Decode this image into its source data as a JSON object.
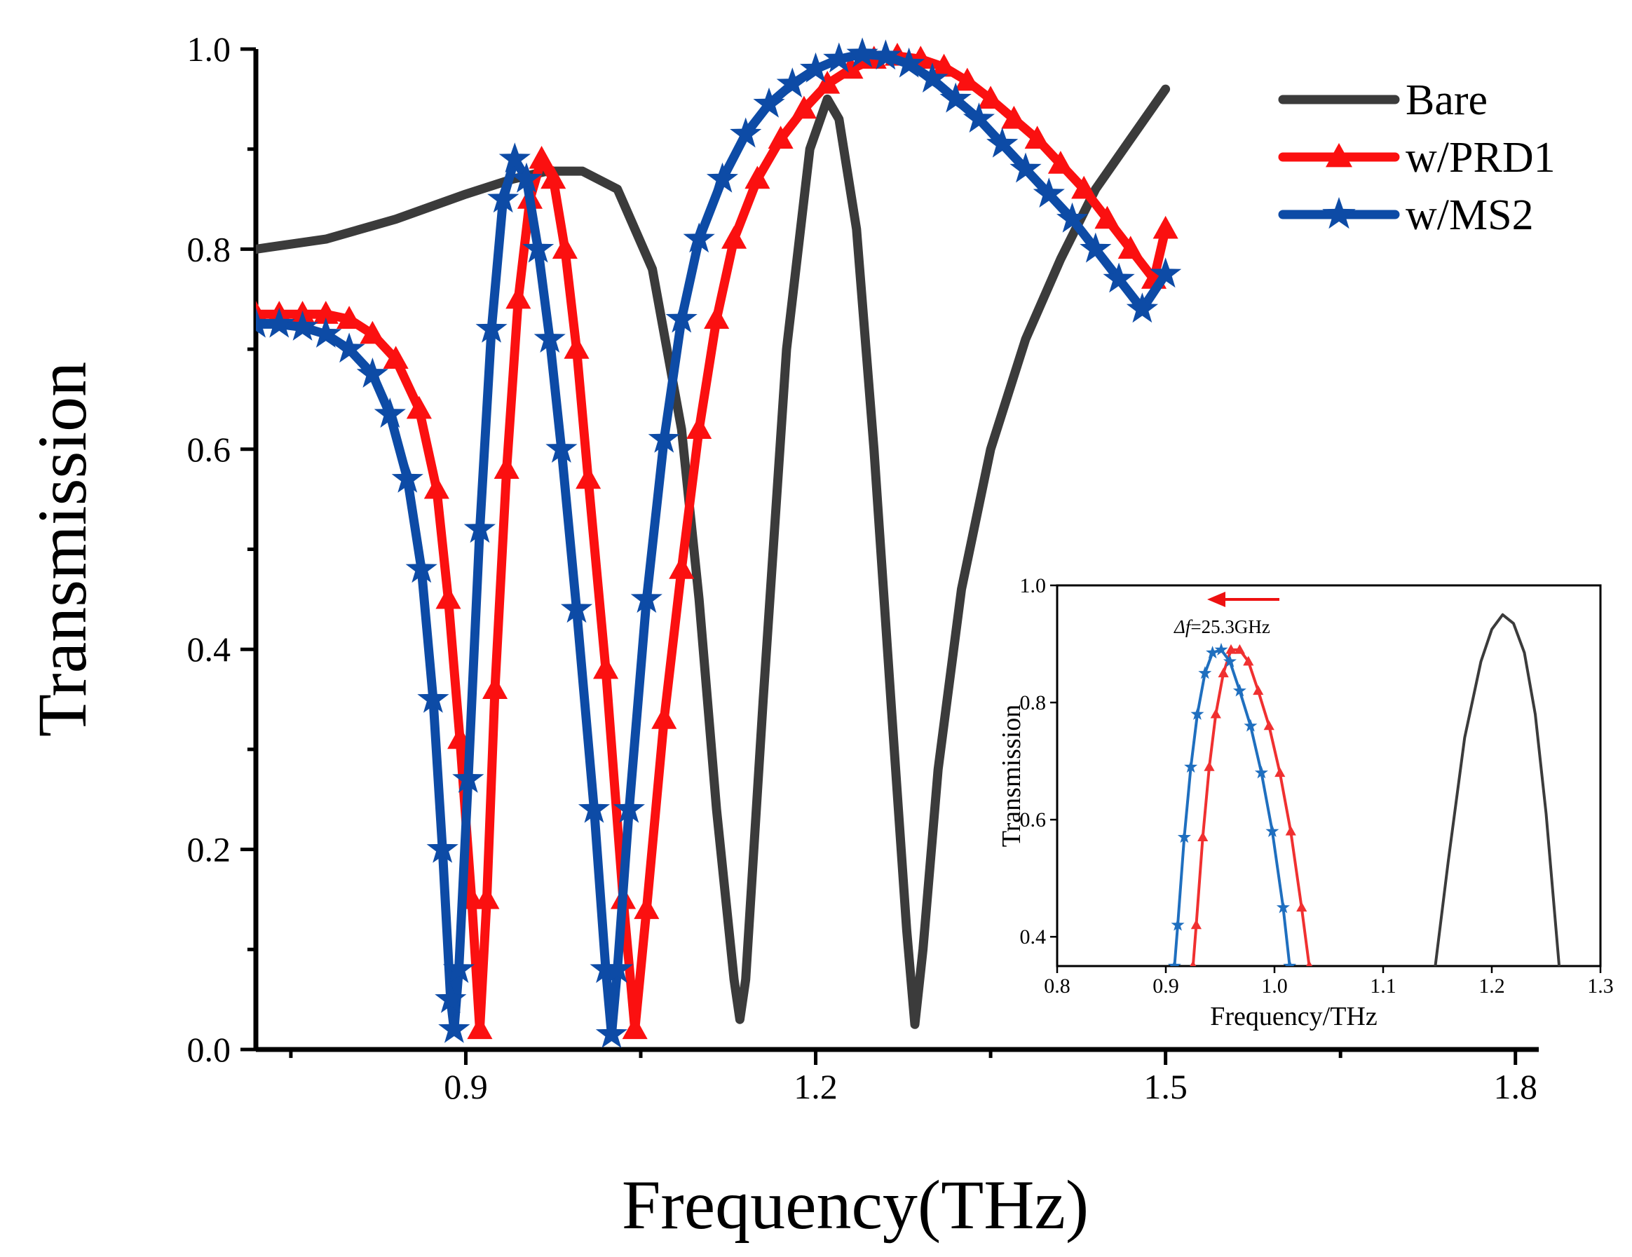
{
  "chart_data": [
    {
      "type": "line",
      "role": "main",
      "title": "",
      "xlabel": "Frequency(THz)",
      "ylabel": "Transmission",
      "xlim": [
        0.72,
        1.82
      ],
      "ylim": [
        0.0,
        1.0
      ],
      "xticks": [
        0.9,
        1.2,
        1.5,
        1.8
      ],
      "xtick_labels": [
        "0.9",
        "1.2",
        "1.5",
        "1.8"
      ],
      "yticks": [
        0.0,
        0.2,
        0.4,
        0.6,
        0.8,
        1.0
      ],
      "ytick_labels": [
        "0.0",
        "0.2",
        "0.4",
        "0.6",
        "0.8",
        "1.0"
      ],
      "legend_position": "top-right",
      "series": [
        {
          "name": "Bare",
          "color": "#3b3b3b",
          "marker": "none",
          "points": [
            [
              0.72,
              0.8
            ],
            [
              0.78,
              0.81
            ],
            [
              0.84,
              0.83
            ],
            [
              0.9,
              0.855
            ],
            [
              0.94,
              0.87
            ],
            [
              0.97,
              0.878
            ],
            [
              1.0,
              0.878
            ],
            [
              1.03,
              0.86
            ],
            [
              1.06,
              0.78
            ],
            [
              1.085,
              0.62
            ],
            [
              1.1,
              0.45
            ],
            [
              1.115,
              0.24
            ],
            [
              1.13,
              0.07
            ],
            [
              1.135,
              0.03
            ],
            [
              1.14,
              0.07
            ],
            [
              1.155,
              0.35
            ],
            [
              1.175,
              0.7
            ],
            [
              1.195,
              0.9
            ],
            [
              1.21,
              0.95
            ],
            [
              1.22,
              0.93
            ],
            [
              1.235,
              0.82
            ],
            [
              1.25,
              0.6
            ],
            [
              1.265,
              0.34
            ],
            [
              1.278,
              0.12
            ],
            [
              1.285,
              0.025
            ],
            [
              1.292,
              0.1
            ],
            [
              1.305,
              0.28
            ],
            [
              1.325,
              0.46
            ],
            [
              1.35,
              0.6
            ],
            [
              1.38,
              0.71
            ],
            [
              1.41,
              0.79
            ],
            [
              1.44,
              0.86
            ],
            [
              1.47,
              0.91
            ],
            [
              1.5,
              0.96
            ]
          ]
        },
        {
          "name": "w/PRD1",
          "color": "#fb1010",
          "marker": "triangle",
          "points": [
            [
              0.72,
              0.735
            ],
            [
              0.74,
              0.735
            ],
            [
              0.76,
              0.735
            ],
            [
              0.78,
              0.735
            ],
            [
              0.8,
              0.73
            ],
            [
              0.82,
              0.715
            ],
            [
              0.84,
              0.69
            ],
            [
              0.86,
              0.64
            ],
            [
              0.875,
              0.56
            ],
            [
              0.885,
              0.45
            ],
            [
              0.895,
              0.31
            ],
            [
              0.905,
              0.15
            ],
            [
              0.912,
              0.02
            ],
            [
              0.918,
              0.15
            ],
            [
              0.925,
              0.36
            ],
            [
              0.935,
              0.58
            ],
            [
              0.945,
              0.75
            ],
            [
              0.955,
              0.85
            ],
            [
              0.965,
              0.89
            ],
            [
              0.975,
              0.87
            ],
            [
              0.985,
              0.8
            ],
            [
              0.995,
              0.7
            ],
            [
              1.005,
              0.57
            ],
            [
              1.02,
              0.38
            ],
            [
              1.035,
              0.15
            ],
            [
              1.045,
              0.02
            ],
            [
              1.055,
              0.14
            ],
            [
              1.07,
              0.33
            ],
            [
              1.085,
              0.48
            ],
            [
              1.1,
              0.62
            ],
            [
              1.115,
              0.73
            ],
            [
              1.13,
              0.81
            ],
            [
              1.15,
              0.87
            ],
            [
              1.17,
              0.91
            ],
            [
              1.19,
              0.94
            ],
            [
              1.21,
              0.965
            ],
            [
              1.23,
              0.98
            ],
            [
              1.25,
              0.99
            ],
            [
              1.27,
              0.993
            ],
            [
              1.29,
              0.99
            ],
            [
              1.31,
              0.982
            ],
            [
              1.33,
              0.968
            ],
            [
              1.35,
              0.95
            ],
            [
              1.37,
              0.93
            ],
            [
              1.39,
              0.91
            ],
            [
              1.41,
              0.885
            ],
            [
              1.43,
              0.86
            ],
            [
              1.45,
              0.83
            ],
            [
              1.47,
              0.8
            ],
            [
              1.49,
              0.77
            ],
            [
              1.5,
              0.82
            ]
          ]
        },
        {
          "name": "w/MS2",
          "color": "#0d4ba6",
          "marker": "star",
          "points": [
            [
              0.72,
              0.725
            ],
            [
              0.74,
              0.725
            ],
            [
              0.76,
              0.722
            ],
            [
              0.78,
              0.715
            ],
            [
              0.8,
              0.7
            ],
            [
              0.82,
              0.675
            ],
            [
              0.835,
              0.635
            ],
            [
              0.85,
              0.57
            ],
            [
              0.862,
              0.48
            ],
            [
              0.872,
              0.35
            ],
            [
              0.88,
              0.2
            ],
            [
              0.887,
              0.05
            ],
            [
              0.89,
              0.02
            ],
            [
              0.894,
              0.08
            ],
            [
              0.902,
              0.27
            ],
            [
              0.912,
              0.52
            ],
            [
              0.922,
              0.72
            ],
            [
              0.932,
              0.85
            ],
            [
              0.942,
              0.89
            ],
            [
              0.952,
              0.87
            ],
            [
              0.962,
              0.8
            ],
            [
              0.972,
              0.71
            ],
            [
              0.982,
              0.6
            ],
            [
              0.995,
              0.44
            ],
            [
              1.01,
              0.24
            ],
            [
              1.02,
              0.08
            ],
            [
              1.025,
              0.015
            ],
            [
              1.03,
              0.08
            ],
            [
              1.04,
              0.24
            ],
            [
              1.055,
              0.45
            ],
            [
              1.07,
              0.61
            ],
            [
              1.085,
              0.73
            ],
            [
              1.1,
              0.81
            ],
            [
              1.12,
              0.87
            ],
            [
              1.14,
              0.915
            ],
            [
              1.16,
              0.945
            ],
            [
              1.18,
              0.965
            ],
            [
              1.2,
              0.98
            ],
            [
              1.22,
              0.99
            ],
            [
              1.24,
              0.995
            ],
            [
              1.26,
              0.993
            ],
            [
              1.28,
              0.985
            ],
            [
              1.3,
              0.97
            ],
            [
              1.32,
              0.95
            ],
            [
              1.34,
              0.93
            ],
            [
              1.36,
              0.905
            ],
            [
              1.38,
              0.88
            ],
            [
              1.4,
              0.855
            ],
            [
              1.42,
              0.83
            ],
            [
              1.44,
              0.8
            ],
            [
              1.46,
              0.77
            ],
            [
              1.48,
              0.74
            ],
            [
              1.5,
              0.775
            ]
          ]
        }
      ]
    },
    {
      "type": "line",
      "role": "inset",
      "title": "",
      "xlabel": "Frequency/THz",
      "ylabel": "Transmission",
      "xlim": [
        0.8,
        1.3
      ],
      "ylim": [
        0.35,
        1.0
      ],
      "xticks": [
        0.8,
        0.9,
        1.0,
        1.1,
        1.2,
        1.3
      ],
      "xtick_labels": [
        "0.8",
        "0.9",
        "1.0",
        "1.1",
        "1.2",
        "1.3"
      ],
      "yticks": [
        0.4,
        0.6,
        0.8,
        1.0
      ],
      "ytick_labels": [
        "0.4",
        "0.6",
        "0.8",
        "1.0"
      ],
      "annotation": {
        "prefix": "Δf",
        "value": "=25.3GHz"
      },
      "series": [
        {
          "name": "Bare",
          "color": "#3b3b3b",
          "marker": "none",
          "points": [
            [
              1.148,
              0.35
            ],
            [
              1.16,
              0.53
            ],
            [
              1.175,
              0.74
            ],
            [
              1.19,
              0.87
            ],
            [
              1.2,
              0.925
            ],
            [
              1.21,
              0.95
            ],
            [
              1.22,
              0.935
            ],
            [
              1.23,
              0.885
            ],
            [
              1.24,
              0.78
            ],
            [
              1.25,
              0.61
            ],
            [
              1.262,
              0.35
            ]
          ]
        },
        {
          "name": "w/PRD1",
          "color": "#f03030",
          "marker": "triangle",
          "points": [
            [
              0.925,
              0.35
            ],
            [
              0.928,
              0.42
            ],
            [
              0.934,
              0.57
            ],
            [
              0.94,
              0.69
            ],
            [
              0.946,
              0.78
            ],
            [
              0.953,
              0.85
            ],
            [
              0.96,
              0.89
            ],
            [
              0.968,
              0.89
            ],
            [
              0.976,
              0.87
            ],
            [
              0.985,
              0.82
            ],
            [
              0.995,
              0.76
            ],
            [
              1.005,
              0.68
            ],
            [
              1.015,
              0.58
            ],
            [
              1.025,
              0.45
            ],
            [
              1.032,
              0.35
            ]
          ]
        },
        {
          "name": "w/MS2",
          "color": "#1f6fbf",
          "marker": "star",
          "points": [
            [
              0.908,
              0.35
            ],
            [
              0.911,
              0.42
            ],
            [
              0.917,
              0.57
            ],
            [
              0.923,
              0.69
            ],
            [
              0.929,
              0.78
            ],
            [
              0.936,
              0.85
            ],
            [
              0.943,
              0.885
            ],
            [
              0.951,
              0.89
            ],
            [
              0.959,
              0.87
            ],
            [
              0.968,
              0.82
            ],
            [
              0.978,
              0.76
            ],
            [
              0.988,
              0.68
            ],
            [
              0.998,
              0.58
            ],
            [
              1.008,
              0.45
            ],
            [
              1.014,
              0.35
            ]
          ]
        }
      ]
    }
  ]
}
